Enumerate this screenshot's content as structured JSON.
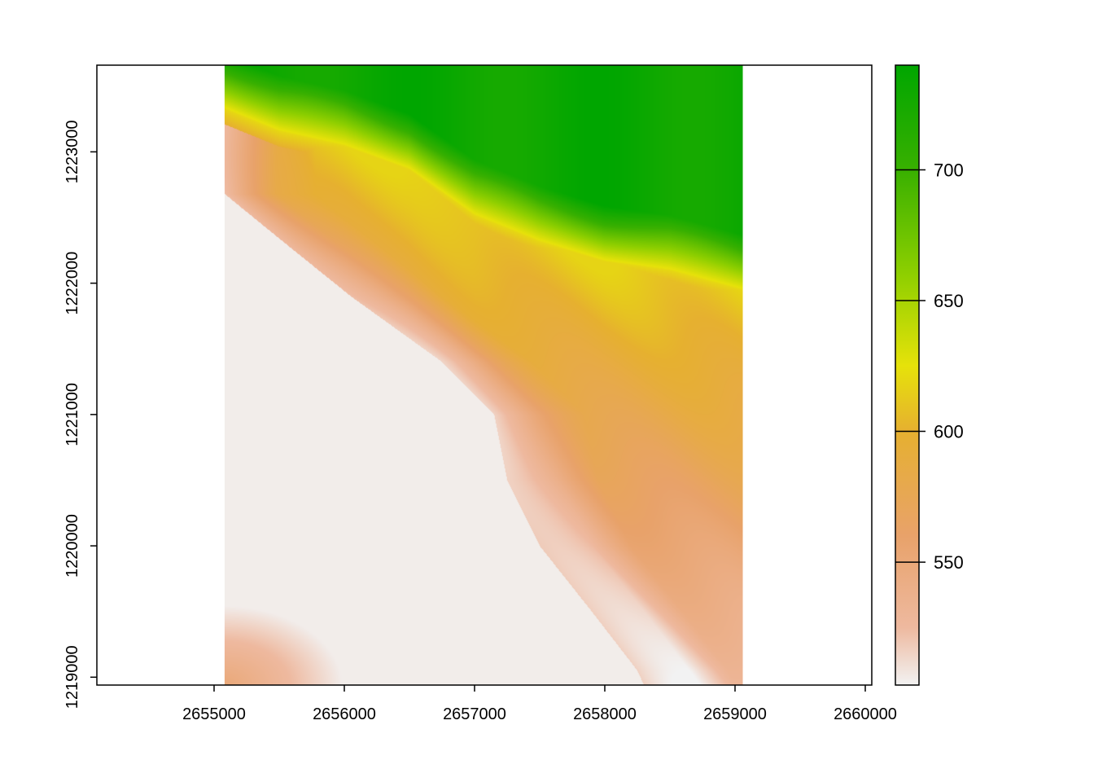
{
  "chart_data": {
    "type": "heatmap",
    "title": "",
    "xlabel": "",
    "ylabel": "",
    "xlim": [
      2654100,
      2660050
    ],
    "ylim": [
      1218940,
      1223660
    ],
    "raster_extent": {
      "x": [
        2655080,
        2659060
      ],
      "y": [
        1218940,
        1223660
      ]
    },
    "x_ticks": [
      {
        "value": 2655000,
        "label": "2655000"
      },
      {
        "value": 2656000,
        "label": "2656000"
      },
      {
        "value": 2657000,
        "label": "2657000"
      },
      {
        "value": 2658000,
        "label": "2658000"
      },
      {
        "value": 2659000,
        "label": "2659000"
      },
      {
        "value": 2660000,
        "label": "2660000"
      }
    ],
    "y_ticks": [
      {
        "value": 1219000,
        "label": "1219000"
      },
      {
        "value": 1220000,
        "label": "1220000"
      },
      {
        "value": 1221000,
        "label": "1221000"
      },
      {
        "value": 1222000,
        "label": "1222000"
      },
      {
        "value": 1223000,
        "label": "1223000"
      }
    ],
    "legend": {
      "placement": "right",
      "range": [
        503,
        740
      ],
      "ticks": [
        {
          "value": 550,
          "label": "550"
        },
        {
          "value": 600,
          "label": "600"
        },
        {
          "value": 650,
          "label": "650"
        },
        {
          "value": 700,
          "label": "700"
        }
      ],
      "colors": [
        {
          "value": 503,
          "color": "#f2f2f2"
        },
        {
          "value": 525,
          "color": "#eeb99f"
        },
        {
          "value": 560,
          "color": "#e8a26a"
        },
        {
          "value": 600,
          "color": "#e6b030"
        },
        {
          "value": 625,
          "color": "#e6e20a"
        },
        {
          "value": 660,
          "color": "#8ecf00"
        },
        {
          "value": 700,
          "color": "#38b000"
        },
        {
          "value": 740,
          "color": "#00a600"
        }
      ]
    },
    "surface": {
      "ridge_y": [
        {
          "x": 2655080,
          "y": 1223330
        },
        {
          "x": 2655500,
          "y": 1223160
        },
        {
          "x": 2656000,
          "y": 1223050
        },
        {
          "x": 2656500,
          "y": 1222870
        },
        {
          "x": 2657000,
          "y": 1222520
        },
        {
          "x": 2657500,
          "y": 1222320
        },
        {
          "x": 2658000,
          "y": 1222170
        },
        {
          "x": 2658500,
          "y": 1222100
        },
        {
          "x": 2659060,
          "y": 1221950
        }
      ],
      "valley_x": [
        {
          "y": 1222680,
          "x": 2655080
        },
        {
          "y": 1222300,
          "x": 2655550
        },
        {
          "y": 1221900,
          "x": 2656050
        },
        {
          "y": 1221400,
          "x": 2656750
        },
        {
          "y": 1221000,
          "x": 2657150
        },
        {
          "y": 1220500,
          "x": 2657250
        },
        {
          "y": 1220000,
          "x": 2657500
        },
        {
          "y": 1219500,
          "x": 2657900
        },
        {
          "y": 1219050,
          "x": 2658250
        },
        {
          "y": 1218940,
          "x": 2658300
        }
      ],
      "elevation_range": [
        503,
        740
      ]
    }
  }
}
